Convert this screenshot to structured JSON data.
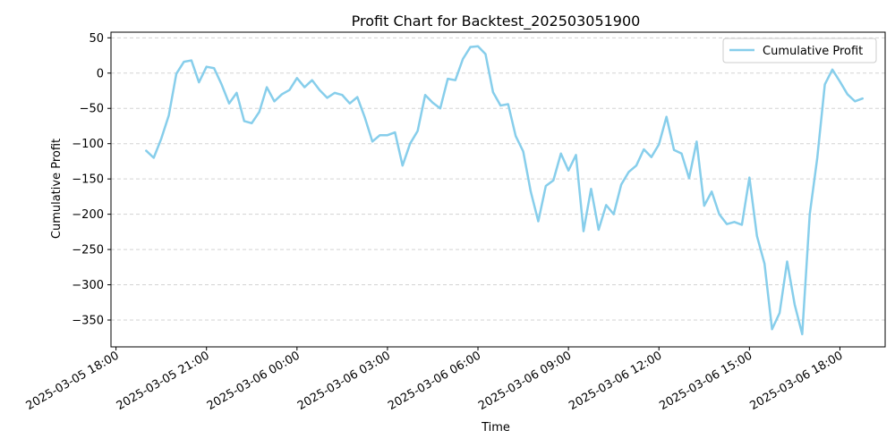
{
  "chart_data": {
    "type": "line",
    "title": "Profit Chart for Backtest_202503051900",
    "xlabel": "Time",
    "ylabel": "Cumulative Profit",
    "legend": "upper-right",
    "grid": "y-dashed",
    "x_axis_kind": "datetime",
    "xlim": [
      "2025-03-05 17:50",
      "2025-03-06 19:30"
    ],
    "ylim": [
      -388,
      58
    ],
    "y_ticks": [
      50,
      0,
      -50,
      -100,
      -150,
      -200,
      -250,
      -300,
      -350
    ],
    "y_tick_labels": [
      "50",
      "0",
      "−50",
      "−100",
      "−150",
      "−200",
      "−250",
      "−300",
      "−350"
    ],
    "x_ticks": [
      "2025-03-05 18:00",
      "2025-03-05 21:00",
      "2025-03-06 00:00",
      "2025-03-06 03:00",
      "2025-03-06 06:00",
      "2025-03-06 09:00",
      "2025-03-06 12:00",
      "2025-03-06 15:00",
      "2025-03-06 18:00"
    ],
    "x_tick_labels": [
      "2025-03-05 18:00",
      "2025-03-05 21:00",
      "2025-03-06 00:00",
      "2025-03-06 03:00",
      "2025-03-06 06:00",
      "2025-03-06 09:00",
      "2025-03-06 12:00",
      "2025-03-06 15:00",
      "2025-03-06 18:00"
    ],
    "series": [
      {
        "name": "Cumulative Profit",
        "color": "#87ceeb",
        "x": [
          "2025-03-05 19:00",
          "2025-03-05 19:15",
          "2025-03-05 19:30",
          "2025-03-05 19:45",
          "2025-03-05 20:00",
          "2025-03-05 20:15",
          "2025-03-05 20:30",
          "2025-03-05 20:45",
          "2025-03-05 21:00",
          "2025-03-05 21:15",
          "2025-03-05 21:30",
          "2025-03-05 21:45",
          "2025-03-05 22:00",
          "2025-03-05 22:15",
          "2025-03-05 22:30",
          "2025-03-05 22:45",
          "2025-03-05 23:00",
          "2025-03-05 23:15",
          "2025-03-05 23:30",
          "2025-03-05 23:45",
          "2025-03-06 00:00",
          "2025-03-06 00:15",
          "2025-03-06 00:30",
          "2025-03-06 00:45",
          "2025-03-06 01:00",
          "2025-03-06 01:15",
          "2025-03-06 01:30",
          "2025-03-06 01:45",
          "2025-03-06 02:00",
          "2025-03-06 02:15",
          "2025-03-06 02:30",
          "2025-03-06 02:45",
          "2025-03-06 03:00",
          "2025-03-06 03:15",
          "2025-03-06 03:30",
          "2025-03-06 03:45",
          "2025-03-06 04:00",
          "2025-03-06 04:15",
          "2025-03-06 04:30",
          "2025-03-06 04:45",
          "2025-03-06 05:00",
          "2025-03-06 05:15",
          "2025-03-06 05:30",
          "2025-03-06 05:45",
          "2025-03-06 06:00",
          "2025-03-06 06:15",
          "2025-03-06 06:30",
          "2025-03-06 06:45",
          "2025-03-06 07:00",
          "2025-03-06 07:15",
          "2025-03-06 07:30",
          "2025-03-06 07:45",
          "2025-03-06 08:00",
          "2025-03-06 08:15",
          "2025-03-06 08:30",
          "2025-03-06 08:45",
          "2025-03-06 09:00",
          "2025-03-06 09:15",
          "2025-03-06 09:30",
          "2025-03-06 09:45",
          "2025-03-06 10:00",
          "2025-03-06 10:15",
          "2025-03-06 10:30",
          "2025-03-06 10:45",
          "2025-03-06 11:00",
          "2025-03-06 11:15",
          "2025-03-06 11:30",
          "2025-03-06 11:45",
          "2025-03-06 12:00",
          "2025-03-06 12:15",
          "2025-03-06 12:30",
          "2025-03-06 12:45",
          "2025-03-06 13:00",
          "2025-03-06 13:15",
          "2025-03-06 13:30",
          "2025-03-06 13:45",
          "2025-03-06 14:00",
          "2025-03-06 14:15",
          "2025-03-06 14:30",
          "2025-03-06 14:45",
          "2025-03-06 15:00",
          "2025-03-06 15:15",
          "2025-03-06 15:30",
          "2025-03-06 15:45",
          "2025-03-06 16:00",
          "2025-03-06 16:15",
          "2025-03-06 16:30",
          "2025-03-06 16:45",
          "2025-03-06 17:00",
          "2025-03-06 17:15",
          "2025-03-06 17:30",
          "2025-03-06 17:45",
          "2025-03-06 18:00",
          "2025-03-06 18:15",
          "2025-03-06 18:30",
          "2025-03-06 18:45"
        ],
        "values": [
          -110,
          -120,
          -93,
          -60,
          -1,
          16,
          18,
          -13,
          9,
          7,
          -16,
          -43,
          -28,
          -68,
          -71,
          -55,
          -20,
          -40,
          -30,
          -24,
          -7,
          -20,
          -10,
          -24,
          -35,
          -28,
          -31,
          -43,
          -34,
          -63,
          -97,
          -88,
          -88,
          -84,
          -131,
          -100,
          -82,
          -31,
          -42,
          -50,
          -8,
          -10,
          20,
          37,
          38,
          27,
          -27,
          -46,
          -44,
          -89,
          -111,
          -168,
          -210,
          -160,
          -152,
          -114,
          -138,
          -116,
          -224,
          -164,
          -222,
          -187,
          -200,
          -158,
          -140,
          -131,
          -108,
          -119,
          -101,
          -62,
          -109,
          -114,
          -149,
          -97,
          -188,
          -168,
          -200,
          -214,
          -211,
          -215,
          -148,
          -231,
          -270,
          -363,
          -340,
          -267,
          -328,
          -370,
          -200,
          -120,
          -16,
          5,
          -12,
          -30,
          -40,
          -36
        ]
      }
    ]
  }
}
